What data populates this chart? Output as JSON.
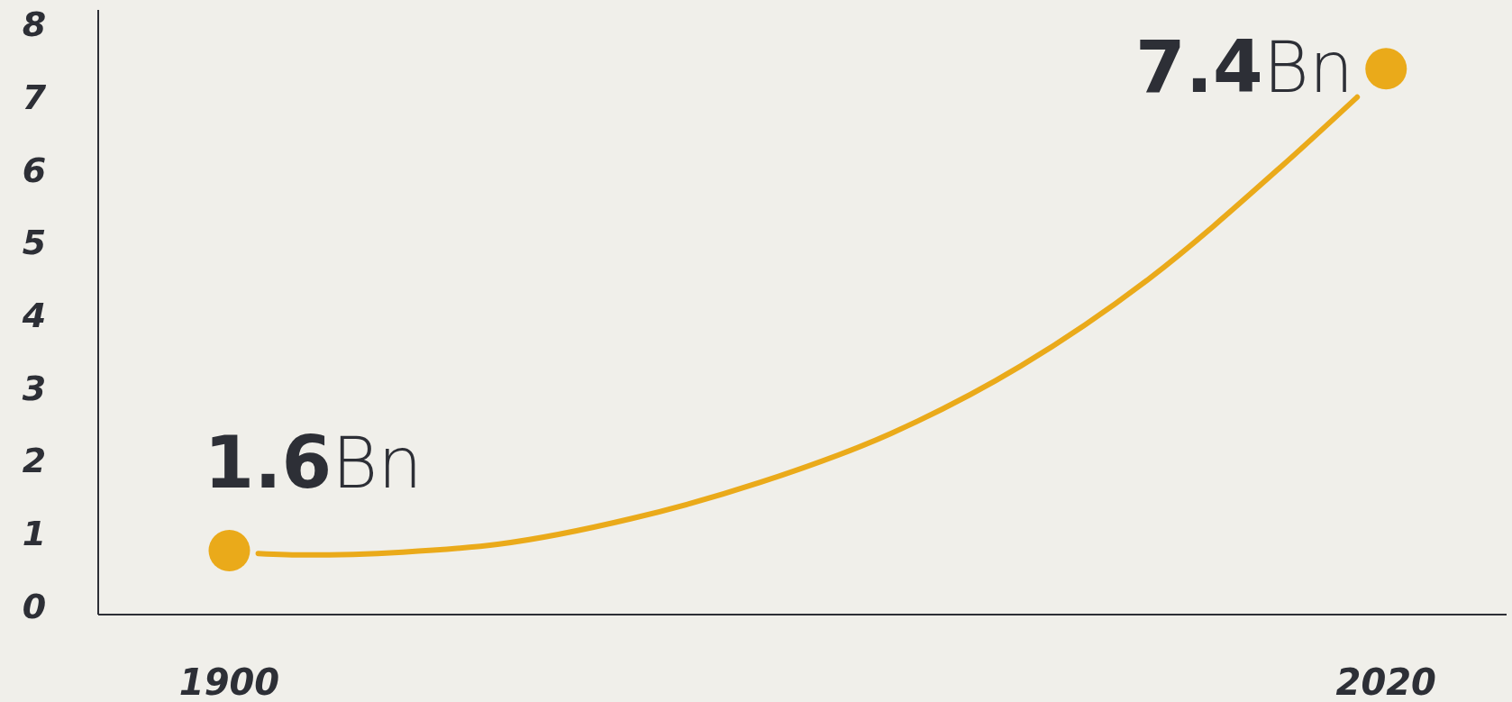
{
  "chart_data": {
    "type": "line",
    "x": [
      1903,
      1908,
      1918,
      1928,
      1941.7,
      1955.1,
      1968.6,
      1982.1,
      1995.5,
      2009,
      2017
    ],
    "series": [
      {
        "color": "#eaaa1a",
        "values": [
          0.72,
          0.7,
          0.74,
          0.85,
          1.2,
          1.7,
          2.37,
          3.3,
          4.51,
          6.03,
          7.0
        ]
      },
      {
        "type": "scatter",
        "color": "#eaaa1a",
        "x": [
          1900,
          2020
        ],
        "values": [
          0.76,
          7.39
        ]
      }
    ],
    "annotations": [
      "1.6Bn",
      "7.4Bn"
    ],
    "xlim": [
      1886.4,
      2032.5
    ],
    "xticks": [
      1900,
      2020
    ],
    "ylim": [
      -0.12,
      8.2
    ],
    "yticks": [
      0,
      1,
      2,
      3,
      4,
      5,
      6,
      7,
      8
    ],
    "grid": false,
    "line_style": "solid"
  }
}
